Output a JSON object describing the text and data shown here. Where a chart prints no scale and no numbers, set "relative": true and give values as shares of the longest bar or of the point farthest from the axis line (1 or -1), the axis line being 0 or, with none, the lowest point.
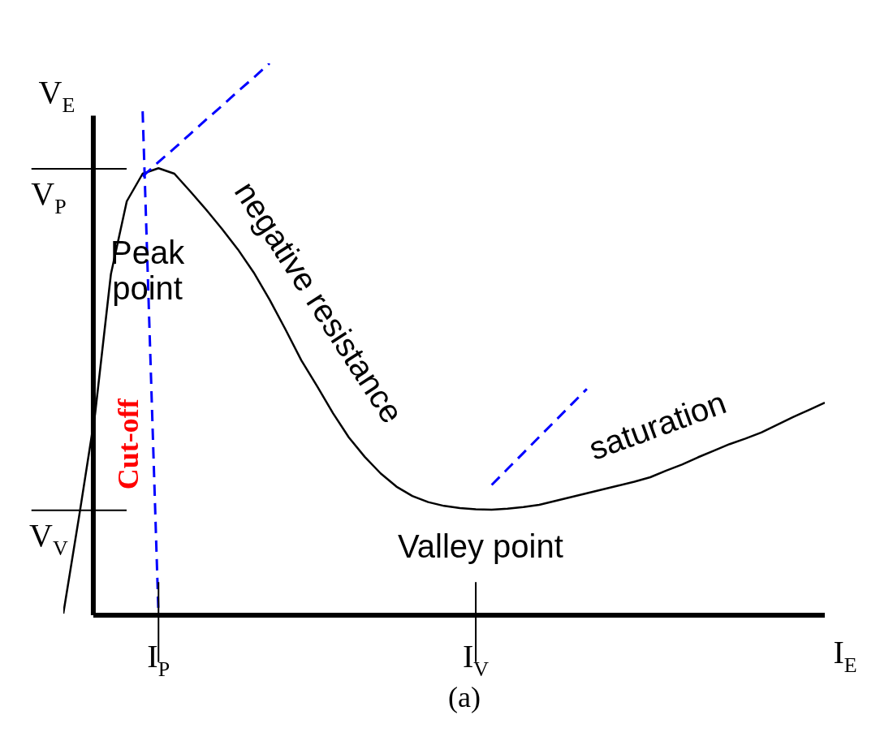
{
  "chart_data": {
    "type": "line",
    "relative": true,
    "xlabel": "I$_{E}$",
    "ylabel": "V$_{E}$",
    "categories": [
      null,
      null,
      null,
      null,
      null,
      null,
      null,
      null,
      null,
      null,
      null,
      null,
      null,
      null,
      null,
      null,
      null,
      null,
      null,
      null,
      null,
      null,
      null,
      null,
      null,
      null,
      null,
      null,
      null,
      null,
      null,
      null,
      null,
      null,
      null,
      null,
      null,
      null,
      null,
      null,
      null,
      null,
      null,
      null,
      null,
      null,
      null,
      null,
      null
    ],
    "series": [
      {
        "color": "#000000",
        "line_style": "solid",
        "values": [
          0.003,
          0.18,
          0.364,
          0.618,
          0.75,
          0.8,
          0.81,
          0.8,
          0.768,
          0.735,
          0.7,
          0.663,
          0.621,
          0.572,
          0.518,
          0.462,
          0.415,
          0.366,
          0.322,
          0.287,
          0.257,
          0.233,
          0.216,
          0.205,
          0.198,
          0.194,
          0.192,
          0.191,
          0.193,
          0.196,
          0.2,
          0.207,
          0.214,
          0.221,
          0.228,
          0.235,
          0.242,
          0.25,
          0.262,
          0.273,
          0.286,
          0.298,
          0.31,
          0.32,
          0.331,
          0.345,
          0.359,
          0.372,
          0.385
        ]
      },
      {
        "color": "#0000ff",
        "line_style": "dashed",
        "values": [
          null,
          null,
          null,
          null,
          null,
          0.913,
          0,
          null,
          null,
          null,
          null,
          null,
          null,
          null,
          null,
          null,
          null,
          null,
          null,
          null,
          null,
          null,
          null,
          null,
          null,
          null,
          null,
          null,
          null,
          null,
          null,
          null,
          null,
          null,
          null,
          null,
          null,
          null,
          null,
          null,
          null,
          null,
          null,
          null,
          null,
          null,
          null,
          null,
          null
        ]
      },
      {
        "color": "#0000ff",
        "line_style": "dashed",
        "values": [
          null,
          null,
          null,
          null,
          null,
          0.795,
          0.821,
          0.846,
          0.872,
          0.898,
          0.923,
          0.949,
          0.974,
          1.0,
          null,
          null,
          null,
          null,
          null,
          null,
          null,
          null,
          null,
          null,
          null,
          null,
          null,
          null,
          null,
          null,
          null,
          null,
          null,
          null,
          null,
          null,
          null,
          null,
          null,
          null,
          null,
          null,
          null,
          null,
          null,
          null,
          null,
          null,
          null
        ]
      },
      {
        "color": "#0000ff",
        "line_style": "dashed",
        "values": [
          null,
          null,
          null,
          null,
          null,
          null,
          null,
          null,
          null,
          null,
          null,
          null,
          null,
          null,
          null,
          null,
          null,
          null,
          null,
          null,
          null,
          null,
          null,
          null,
          null,
          null,
          null,
          0.236,
          0.265,
          0.294,
          0.323,
          0.352,
          0.381,
          0.41,
          null,
          null,
          null,
          null,
          null,
          null,
          null,
          null,
          null,
          null,
          null,
          null,
          null,
          null,
          null
        ]
      }
    ],
    "annotations": [
      "Peak point",
      "negative resistance",
      "saturation",
      "Valley point",
      "Cut-off",
      "(a)",
      "I$_{P}$",
      "I$_{V}$",
      "V$_{P}$",
      "V$_{V}$"
    ]
  }
}
